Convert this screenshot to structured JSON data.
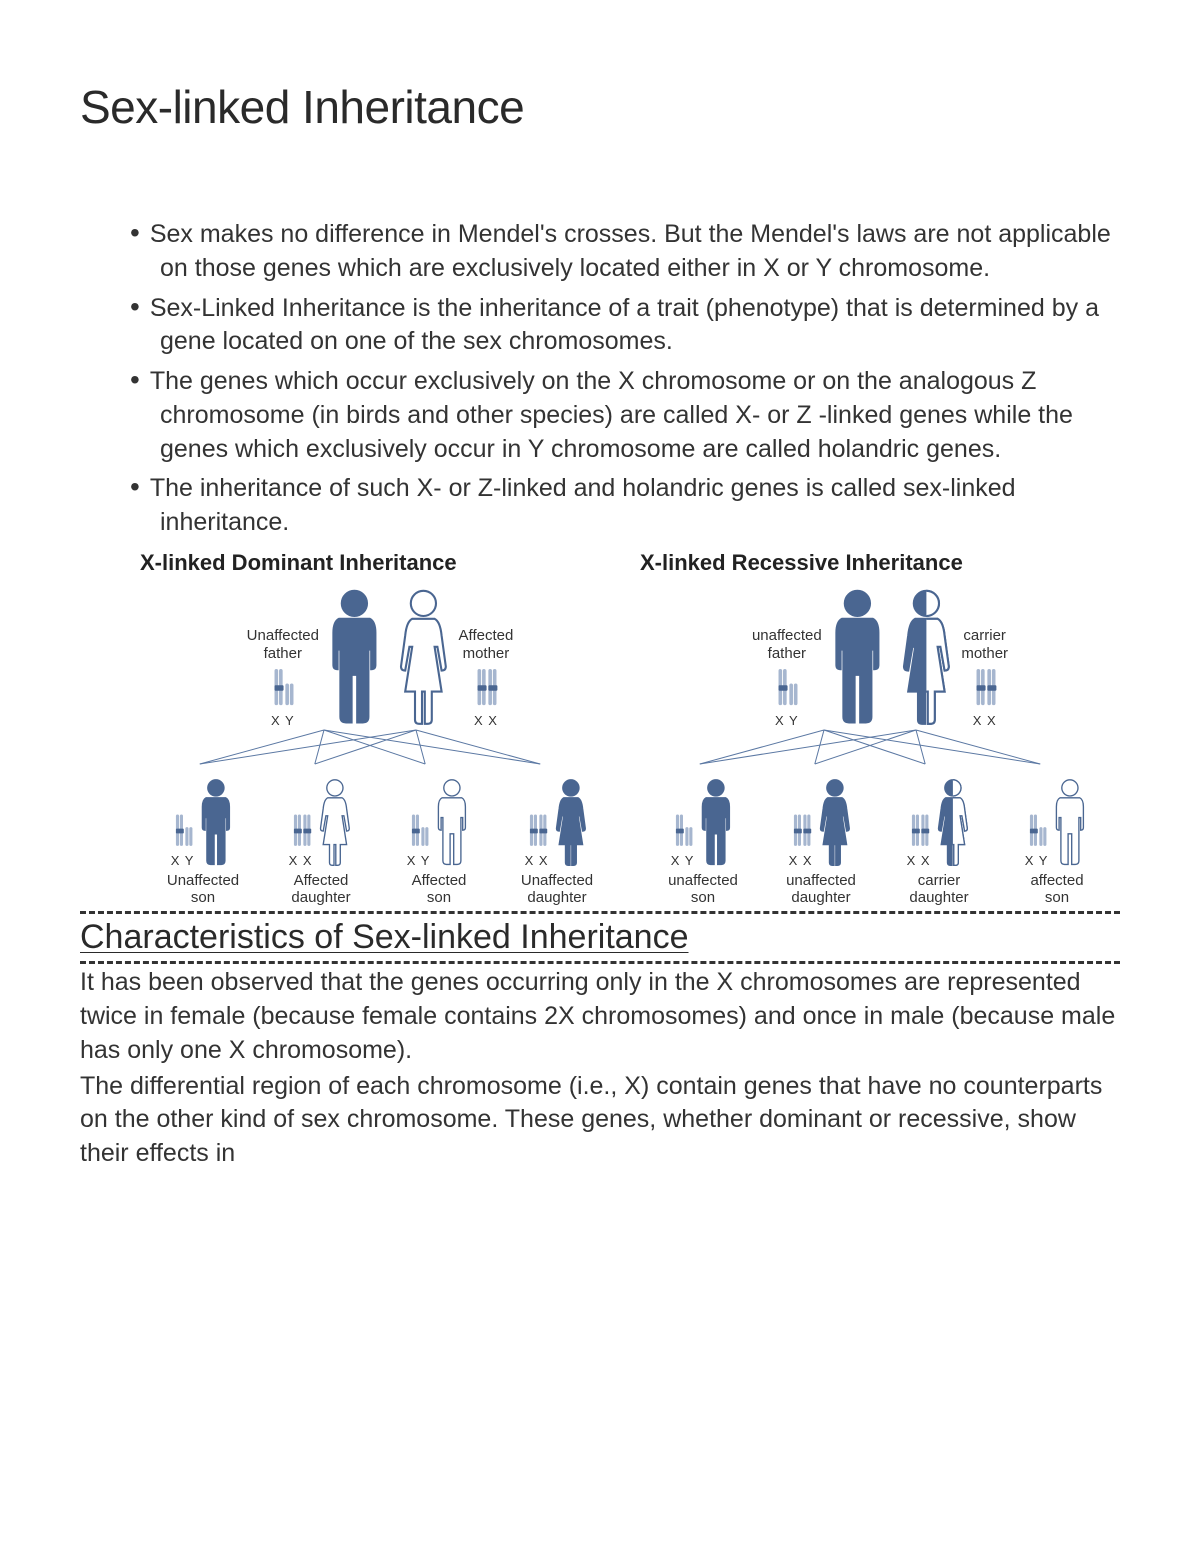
{
  "title": "Sex-linked Inheritance",
  "bullets": [
    "Sex makes no difference in Mendel's crosses. But the Mendel's laws are not applicable on those genes which are exclusively located either in X or Y chromosome.",
    "Sex-Linked Inheritance is the inheritance of a trait (phenotype) that is determined by a gene located on one of the sex chromosomes.",
    "The genes which occur exclusively on the X chromosome or on the analogous Z chromosome (in birds and other species) are called X- or Z -linked genes while the genes which exclusively occur in Y chromosome are called holandric genes.",
    "The inheritance of such X- or Z-linked and holandric genes is called sex-linked inheritance."
  ],
  "section2_title": "Characteristics of Sex-linked Inheritance",
  "body_p1": "It has been observed that the genes occurring only in the X chromosomes are represented twice in female (because female contains 2X chromosomes) and once in male (because male has only one X chromosome).",
  "body_p2": "The differential region of each chromosome (i.e., X) contain genes that have no counterparts on the other kind of sex chromosome. These genes, whether dominant or recessive, show their effects in",
  "colors": {
    "fill_solid": "#4a6691",
    "fill_light": "#a6b6cf",
    "outline": "#4a6691",
    "white": "#ffffff",
    "line": "#5b78a3"
  },
  "diagram_dominant": {
    "title": "X-linked Dominant Inheritance",
    "father": {
      "label": "Unaffected\nfather",
      "style": "solid",
      "chrom": "X Y"
    },
    "mother": {
      "label": "Affected\nmother",
      "style": "outline",
      "chrom": "X X"
    },
    "children": [
      {
        "label": "Unaffected\nson",
        "sex": "m",
        "style": "solid",
        "chrom": "X Y"
      },
      {
        "label": "Affected\ndaughter",
        "sex": "f",
        "style": "outline",
        "chrom": "X X"
      },
      {
        "label": "Affected\nson",
        "sex": "m",
        "style": "outline",
        "chrom": "X Y"
      },
      {
        "label": "Unaffected\ndaughter",
        "sex": "f",
        "style": "solid",
        "chrom": "X X"
      }
    ]
  },
  "diagram_recessive": {
    "title": "X-linked Recessive Inheritance",
    "father": {
      "label": "unaffected\nfather",
      "style": "solid",
      "chrom": "X Y"
    },
    "mother": {
      "label": "carrier\nmother",
      "style": "half",
      "chrom": "X X"
    },
    "children": [
      {
        "label": "unaffected\nson",
        "sex": "m",
        "style": "solid",
        "chrom": "X Y"
      },
      {
        "label": "unaffected\ndaughter",
        "sex": "f",
        "style": "solid",
        "chrom": "X X"
      },
      {
        "label": "carrier\ndaughter",
        "sex": "f",
        "style": "half",
        "chrom": "X X"
      },
      {
        "label": "affected\nson",
        "sex": "m",
        "style": "outline",
        "chrom": "X Y"
      }
    ]
  }
}
